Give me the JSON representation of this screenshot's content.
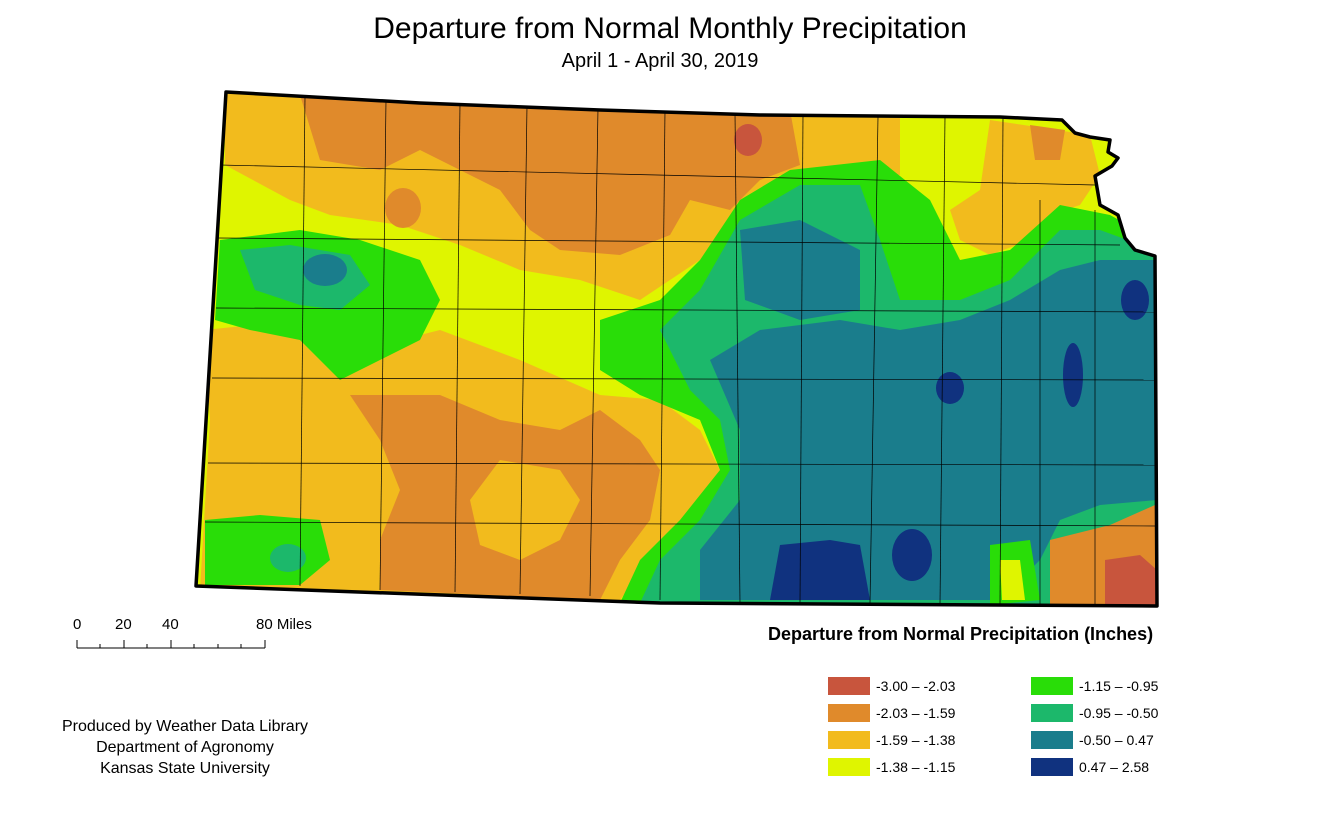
{
  "title": "Departure from Normal Monthly Precipitation",
  "subtitle": "April 1 - April 30, 2019",
  "scale_bar": {
    "labels": [
      "0",
      "20",
      "40",
      "80 Miles"
    ]
  },
  "credits": [
    "Produced by Weather Data Library",
    "Department of Agronomy",
    "Kansas State University"
  ],
  "legend": {
    "title": "Departure from Normal Precipitation (Inches)",
    "items": [
      {
        "label": "-3.00 – -2.03",
        "color": "#c8553d"
      },
      {
        "label": "-2.03 – -1.59",
        "color": "#e08a2b"
      },
      {
        "label": "-1.59 – -1.38",
        "color": "#f2bb1d"
      },
      {
        "label": "-1.38 – -1.15",
        "color": "#dff500"
      },
      {
        "label": "-1.15 – -0.95",
        "color": "#29dd08"
      },
      {
        "label": "-0.95 – -0.50",
        "color": "#1cb86b"
      },
      {
        "label": "-0.50 – 0.47",
        "color": "#1a7d8c"
      },
      {
        "label": "0.47 – 2.58",
        "color": "#10327f"
      }
    ]
  }
}
